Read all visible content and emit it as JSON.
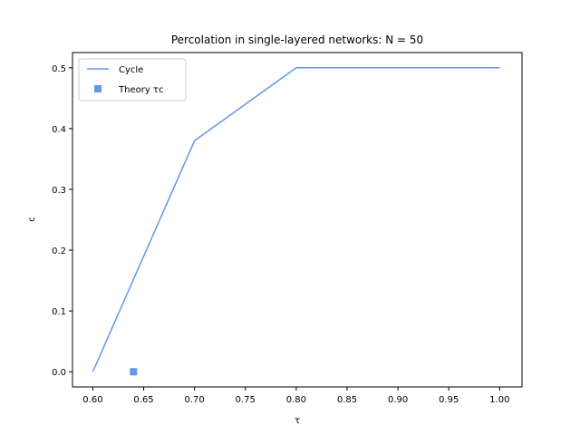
{
  "chart_data": {
    "type": "line",
    "title": "Percolation in single-layered networks: N = 50",
    "xlabel": "τ",
    "ylabel": "c",
    "xlim": [
      0.58,
      1.022
    ],
    "ylim": [
      -0.025,
      0.525
    ],
    "xticks": [
      0.6,
      0.65,
      0.7,
      0.75,
      0.8,
      0.85,
      0.9,
      0.95,
      1.0
    ],
    "xtick_labels": [
      "0.60",
      "0.65",
      "0.70",
      "0.75",
      "0.80",
      "0.85",
      "0.90",
      "0.95",
      "1.00"
    ],
    "yticks": [
      0.0,
      0.1,
      0.2,
      0.3,
      0.4,
      0.5
    ],
    "ytick_labels": [
      "0.0",
      "0.1",
      "0.2",
      "0.3",
      "0.4",
      "0.5"
    ],
    "grid": false,
    "legend_position": "top-left",
    "series": [
      {
        "name": "Cycle",
        "kind": "line",
        "color": "#6495ED",
        "x": [
          0.6,
          0.7,
          0.8,
          0.9,
          1.0
        ],
        "y": [
          0.0,
          0.38,
          0.5,
          0.5,
          0.5
        ]
      },
      {
        "name": "Theory τc",
        "kind": "marker",
        "marker": "square",
        "color": "#6495ED",
        "x": [
          0.64
        ],
        "y": [
          0.0
        ]
      }
    ]
  }
}
